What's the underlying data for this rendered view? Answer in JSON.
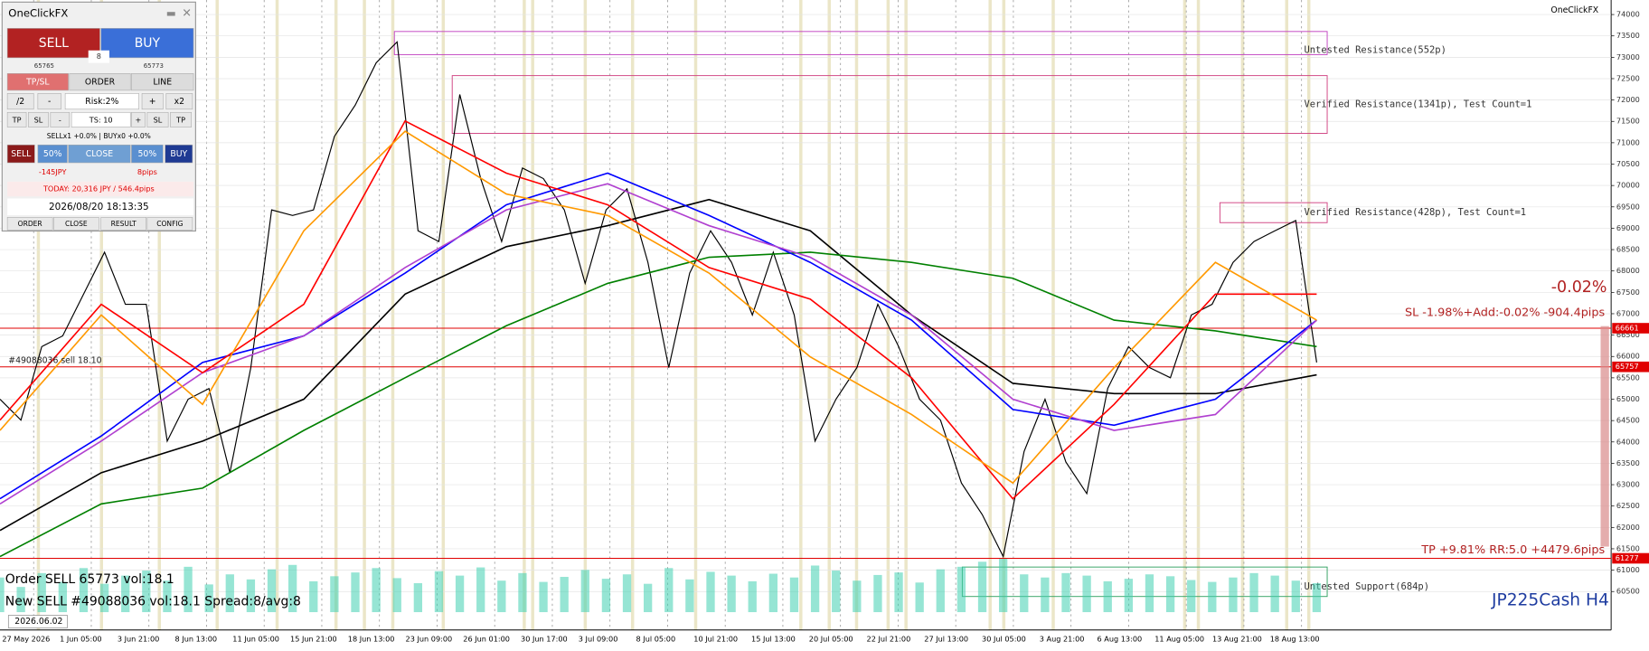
{
  "panel": {
    "title": "OneClickFX",
    "sell": "SELL",
    "buy": "BUY",
    "spread": "8",
    "bid": "65765",
    "ask": "65773",
    "tabs": [
      "TP/SL",
      "ORDER",
      "LINE"
    ],
    "row1": [
      "/2",
      "-",
      "Risk:2%",
      "+",
      "x2"
    ],
    "row2": [
      "TP",
      "SL",
      "-",
      "TS: 10",
      "+",
      "SL",
      "TP"
    ],
    "positions": "SELLx1 +0.0% | BUYx0 +0.0%",
    "row3": [
      "SELL",
      "50%",
      "CLOSE",
      "50%",
      "BUY"
    ],
    "pnl": "-145JPY",
    "pips": "8pips",
    "today": "TODAY: 20,316 JPY / 546.4pips",
    "clock": "2026/08/20  18:13:35",
    "buttons": [
      "ORDER",
      "CLOSE",
      "RESULT",
      "CONFIG"
    ]
  },
  "chart_data": {
    "type": "line",
    "symbol": "JP225Cash H4",
    "brand": "OneClickFX",
    "date_label": "2026.06.02",
    "ylim": [
      59600,
      74340
    ],
    "yticks": [
      60500,
      61000,
      61500,
      62000,
      62500,
      63000,
      63500,
      64000,
      64500,
      65000,
      65500,
      66000,
      66500,
      67000,
      67500,
      68000,
      68500,
      69000,
      69500,
      70000,
      70500,
      71000,
      71500,
      72000,
      72500,
      73000,
      73500,
      74000
    ],
    "x_labels": [
      "27 May 2026",
      "1 Jun 05:00",
      "3 Jun 21:00",
      "8 Jun 13:00",
      "11 Jun 05:00",
      "15 Jun 21:00",
      "18 Jun 13:00",
      "23 Jun 09:00",
      "26 Jun 01:00",
      "30 Jun 17:00",
      "3 Jul 09:00",
      "8 Jul 05:00",
      "10 Jul 21:00",
      "15 Jul 13:00",
      "20 Jul 05:00",
      "22 Jul 21:00",
      "27 Jul 13:00",
      "30 Jul 05:00",
      "3 Aug 21:00",
      "6 Aug 13:00",
      "11 Aug 05:00",
      "13 Aug 21:00",
      "18 Aug 13:00"
    ],
    "price": {
      "color": "#000000",
      "values": [
        65000,
        64510,
        66230,
        66480,
        67460,
        68440,
        67220,
        67220,
        64020,
        65000,
        65250,
        63280,
        65740,
        69430,
        69300,
        69430,
        71150,
        71880,
        72870,
        73360,
        68940,
        68690,
        72130,
        70160,
        68690,
        70410,
        70160,
        69430,
        67710,
        69430,
        69920,
        68200,
        65740,
        67950,
        68940,
        68200,
        66970,
        68440,
        66970,
        64020,
        65000,
        65740,
        67220,
        66230,
        65000,
        64510,
        63040,
        62300,
        61320,
        63780,
        65000,
        63530,
        62790,
        65250,
        66230,
        65740,
        65500,
        66970,
        67220,
        68200,
        68690,
        68940,
        69180,
        65860
      ]
    },
    "series": [
      {
        "color": "#000000",
        "values": [
          61930,
          63280,
          64020,
          65000,
          67460,
          68570,
          69060,
          69670,
          68940,
          66970,
          65370,
          65130,
          65130,
          65570
        ]
      },
      {
        "color": "#008000",
        "values": [
          61320,
          62550,
          62920,
          64270,
          65500,
          66720,
          67710,
          68320,
          68440,
          68200,
          67830,
          66850,
          66600,
          66230
        ]
      },
      {
        "color": "#0000ff",
        "values": [
          62670,
          64140,
          65860,
          66480,
          67950,
          69550,
          70290,
          69300,
          68200,
          66850,
          64760,
          64390,
          65000,
          66850
        ]
      },
      {
        "color": "#b040d0",
        "values": [
          62550,
          64020,
          65620,
          66480,
          68080,
          69430,
          70040,
          69060,
          68320,
          66970,
          65000,
          64270,
          64640,
          66850
        ]
      },
      {
        "color": "#ff0000",
        "values": [
          64510,
          67220,
          65620,
          67220,
          71510,
          70290,
          69550,
          68080,
          67340,
          65500,
          62670,
          64880,
          67460,
          67460
        ]
      },
      {
        "color": "#ff9900",
        "values": [
          64270,
          66970,
          64880,
          68940,
          71270,
          69800,
          69300,
          67950,
          65990,
          64640,
          63040,
          65740,
          68200,
          66850
        ]
      }
    ],
    "volume": {
      "color": "#40d0b0",
      "values": [
        55,
        40,
        62,
        48,
        70,
        45,
        58,
        66,
        50,
        72,
        44,
        60,
        52,
        68,
        75,
        49,
        57,
        63,
        70,
        54,
        46,
        65,
        58,
        71,
        50,
        62,
        48,
        56,
        67,
        53,
        60,
        45,
        70,
        52,
        64,
        58,
        49,
        61,
        55,
        74,
        66,
        50,
        59,
        63,
        47,
        68,
        72,
        80,
        85,
        60,
        55,
        62,
        58,
        49,
        53,
        60,
        57,
        51,
        48,
        55,
        62,
        58,
        50,
        46
      ]
    },
    "vlim": [
      0,
      100
    ],
    "levels": [
      {
        "value": 66661,
        "color": "#e00000"
      },
      {
        "value": 65757,
        "color": "#e00000"
      },
      {
        "value": 61277,
        "color": "#e00000"
      }
    ],
    "zones": [
      {
        "label": "Untested Resistance(552p)",
        "low": 73062,
        "high": 73603,
        "color": "#c040c0"
      },
      {
        "label": "Verified Resistance(1341p), Test Count=1",
        "low": 71220,
        "high": 72571,
        "color": "#d04080"
      },
      {
        "label": "Verified Resistance(428p), Test Count=1",
        "low": 69131,
        "high": 69598,
        "color": "#d04080"
      },
      {
        "label": "Untested Support(684p)",
        "low": 60384,
        "high": 61073,
        "color": "#30a060"
      }
    ],
    "annotations": {
      "pct": "-0.02%",
      "sl": "SL -1.98%+Add:-0.02% -904.4pips",
      "tp": "TP +9.81% RR:5.0 +4479.6pips",
      "order_tag": "#49088036 sell 18.10",
      "order": "Order SELL 65773 vol:18.1",
      "new": "New SELL #49088036 vol:18.1 Spread:8/avg:8"
    }
  }
}
